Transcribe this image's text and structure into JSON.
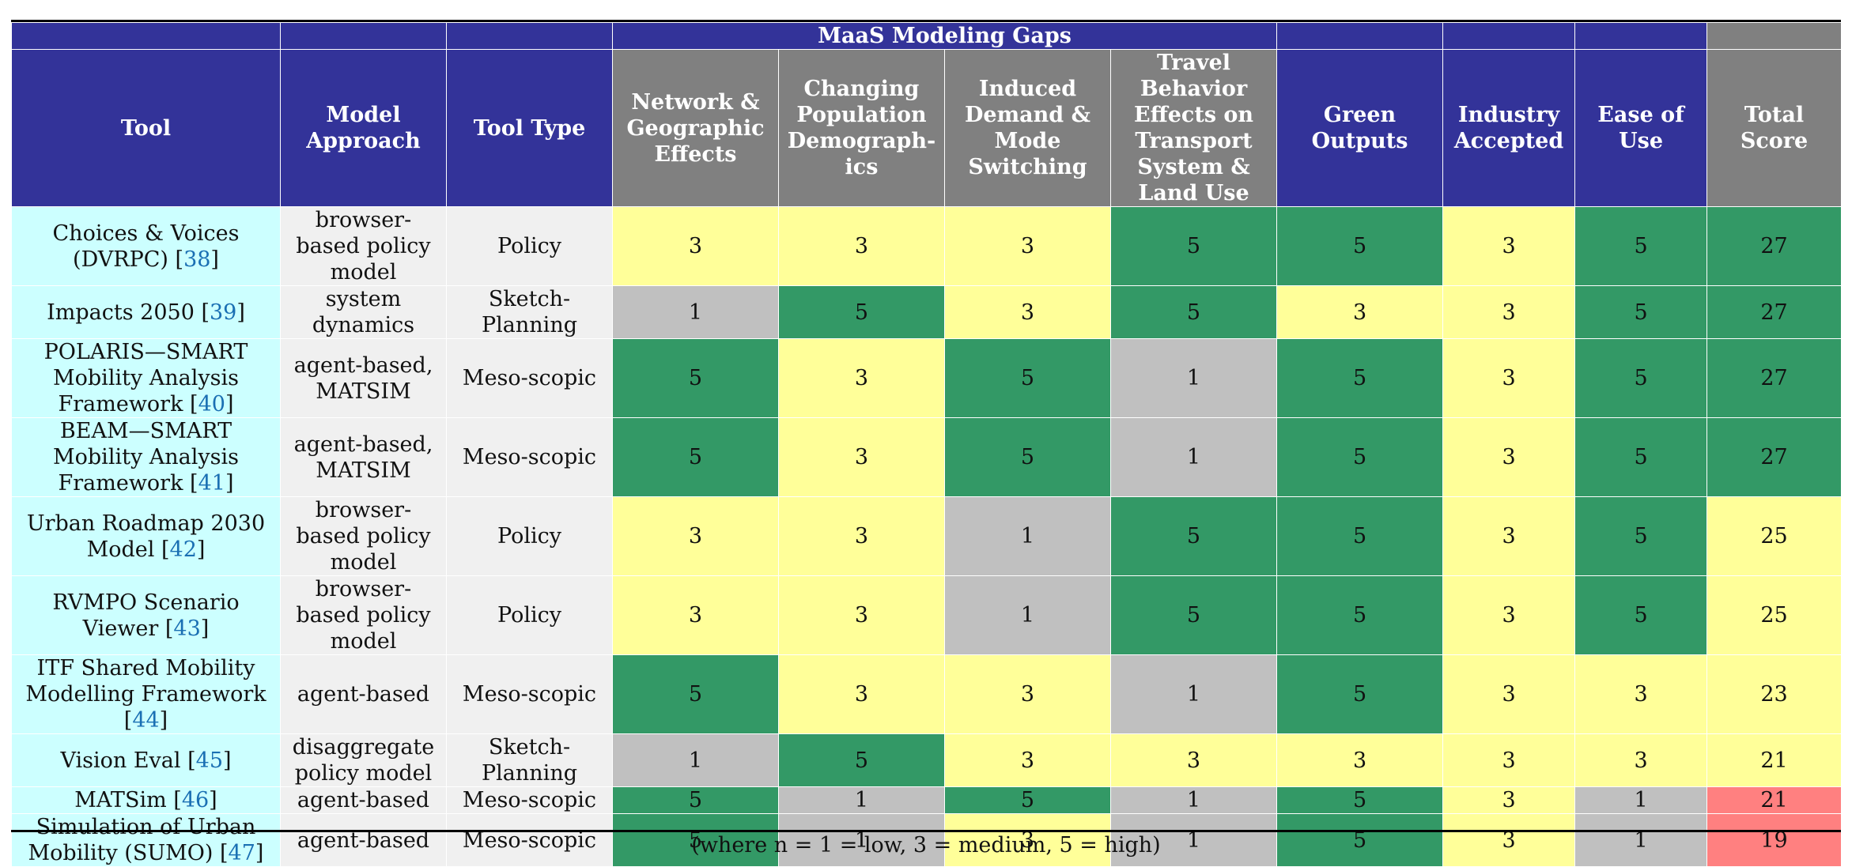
{
  "caption_bottom": "(where n = 1 = low, 3 = medium, 5 = high)",
  "colors": {
    "header_blue": "#333399",
    "header_gray": "#808080",
    "score_high": "#339966",
    "score_medium": "#ffff99",
    "score_low": "#c0c0c0",
    "total_low": "#ff8080",
    "tool_column": "#ccffff",
    "approach_column": "#f0f0f0"
  },
  "header": {
    "group_label": "MaaS Modeling Gaps",
    "tool": "Tool",
    "model_approach": "Model Approach",
    "tool_type": "Tool Type",
    "network": "Network & Geographic Effects",
    "population": "Changing Population Demograph-ics",
    "induced": "Induced Demand & Mode Switching",
    "travel": "Travel Behavior Effects on Transport System & Land Use",
    "green": "Green Outputs",
    "industry": "Industry Accepted",
    "ease": "Ease of Use",
    "total": "Total Score"
  },
  "rows": [
    {
      "tool": "Choices & Voices (DVRPC)",
      "ref": "38",
      "approach": "browser-based policy model",
      "type": "Policy",
      "scores": [
        3,
        3,
        3,
        5,
        5,
        3,
        5
      ],
      "total": 27,
      "total_level": "high"
    },
    {
      "tool": "Impacts 2050",
      "ref": "39",
      "approach": "system dynamics",
      "type": "Sketch-Planning",
      "scores": [
        1,
        5,
        3,
        5,
        3,
        3,
        5
      ],
      "total": 27,
      "total_level": "high"
    },
    {
      "tool": "POLARIS—SMART Mobility Analysis Framework",
      "ref": "40",
      "approach": "agent-based, MATSIM",
      "type": "Meso-scopic",
      "scores": [
        5,
        3,
        5,
        1,
        5,
        3,
        5
      ],
      "total": 27,
      "total_level": "high"
    },
    {
      "tool": "BEAM—SMART Mobility Analysis Framework",
      "ref": "41",
      "approach": "agent-based, MATSIM",
      "type": "Meso-scopic",
      "scores": [
        5,
        3,
        5,
        1,
        5,
        3,
        5
      ],
      "total": 27,
      "total_level": "high"
    },
    {
      "tool": "Urban Roadmap 2030 Model",
      "ref": "42",
      "approach": "browser-based policy model",
      "type": "Policy",
      "scores": [
        3,
        3,
        1,
        5,
        5,
        3,
        5
      ],
      "total": 25,
      "total_level": "medium"
    },
    {
      "tool": "RVMPO Scenario Viewer",
      "ref": "43",
      "approach": "browser-based policy model",
      "type": "Policy",
      "scores": [
        3,
        3,
        1,
        5,
        5,
        3,
        5
      ],
      "total": 25,
      "total_level": "medium"
    },
    {
      "tool": "ITF Shared Mobility Modelling Framework",
      "ref": "44",
      "approach": "agent-based",
      "type": "Meso-scopic",
      "scores": [
        5,
        3,
        3,
        1,
        5,
        3,
        3
      ],
      "total": 23,
      "total_level": "medium"
    },
    {
      "tool": "Vision Eval",
      "ref": "45",
      "approach": "disaggregate policy model",
      "type": "Sketch-Planning",
      "scores": [
        1,
        5,
        3,
        3,
        3,
        3,
        3
      ],
      "total": 21,
      "total_level": "medium"
    },
    {
      "tool": "MATSim",
      "ref": "46",
      "approach": "agent-based",
      "type": "Meso-scopic",
      "scores": [
        5,
        1,
        5,
        1,
        5,
        3,
        1
      ],
      "total": 21,
      "total_level": "low"
    },
    {
      "tool": "Simulation of Urban Mobility (SUMO)",
      "ref": "47",
      "approach": "agent-based",
      "type": "Meso-scopic",
      "scores": [
        5,
        1,
        3,
        1,
        5,
        3,
        1
      ],
      "total": 19,
      "total_level": "low"
    }
  ]
}
